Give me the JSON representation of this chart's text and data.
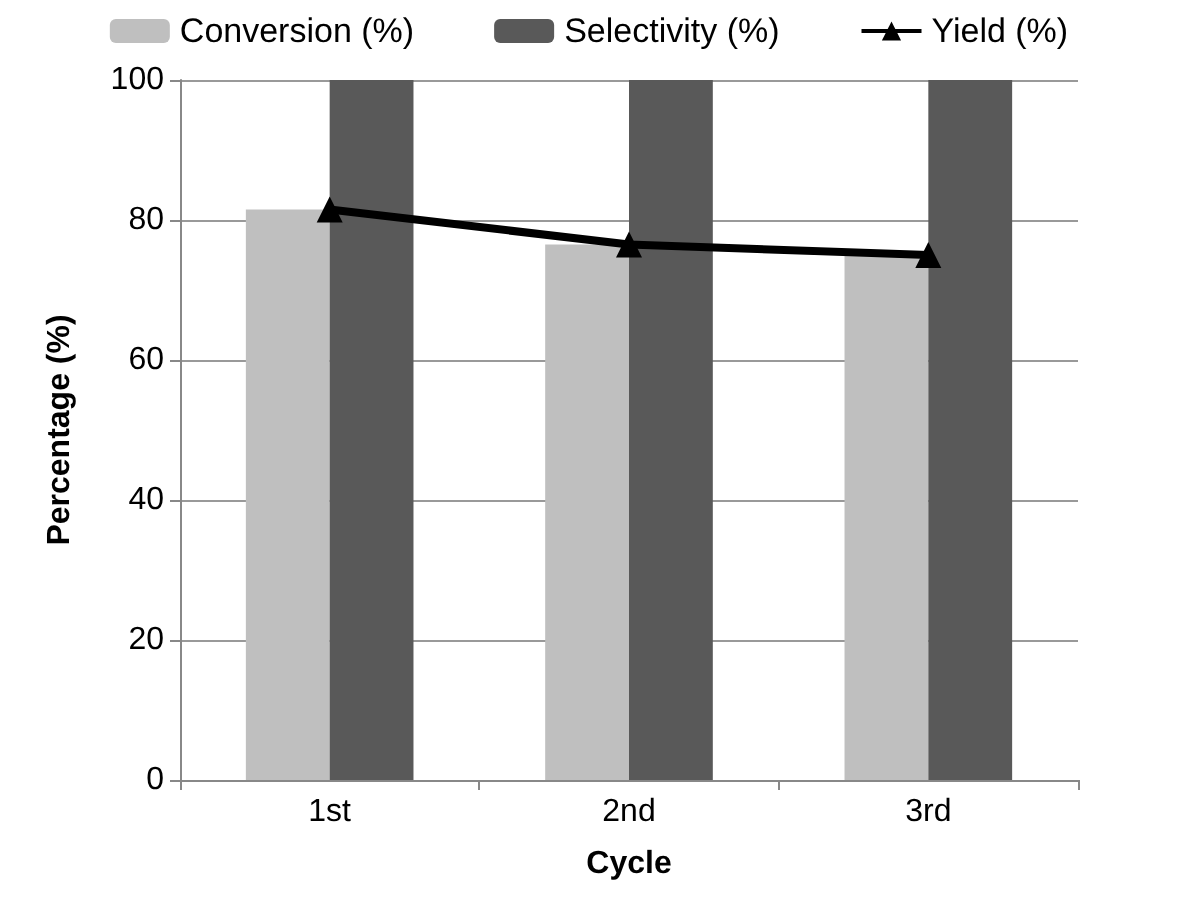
{
  "chart_data": {
    "type": "bar",
    "xlabel": "Cycle",
    "ylabel": "Percentage (%)",
    "categories": [
      "1st",
      "2nd",
      "3rd"
    ],
    "series": [
      {
        "name": "Conversion (%)",
        "color": "#bfbfbf",
        "values": [
          81.5,
          76.5,
          75
        ]
      },
      {
        "name": "Selectivity (%)",
        "color": "#595959",
        "values": [
          100,
          100,
          100
        ]
      },
      {
        "name": "Yield (%)",
        "type": "line",
        "color": "#000000",
        "values": [
          81.5,
          76.5,
          75
        ],
        "marker": "triangle"
      }
    ],
    "ylim": [
      0,
      100
    ],
    "yticks": [
      0,
      20,
      40,
      60,
      80,
      100
    ],
    "grid": "y",
    "legend": "top"
  }
}
